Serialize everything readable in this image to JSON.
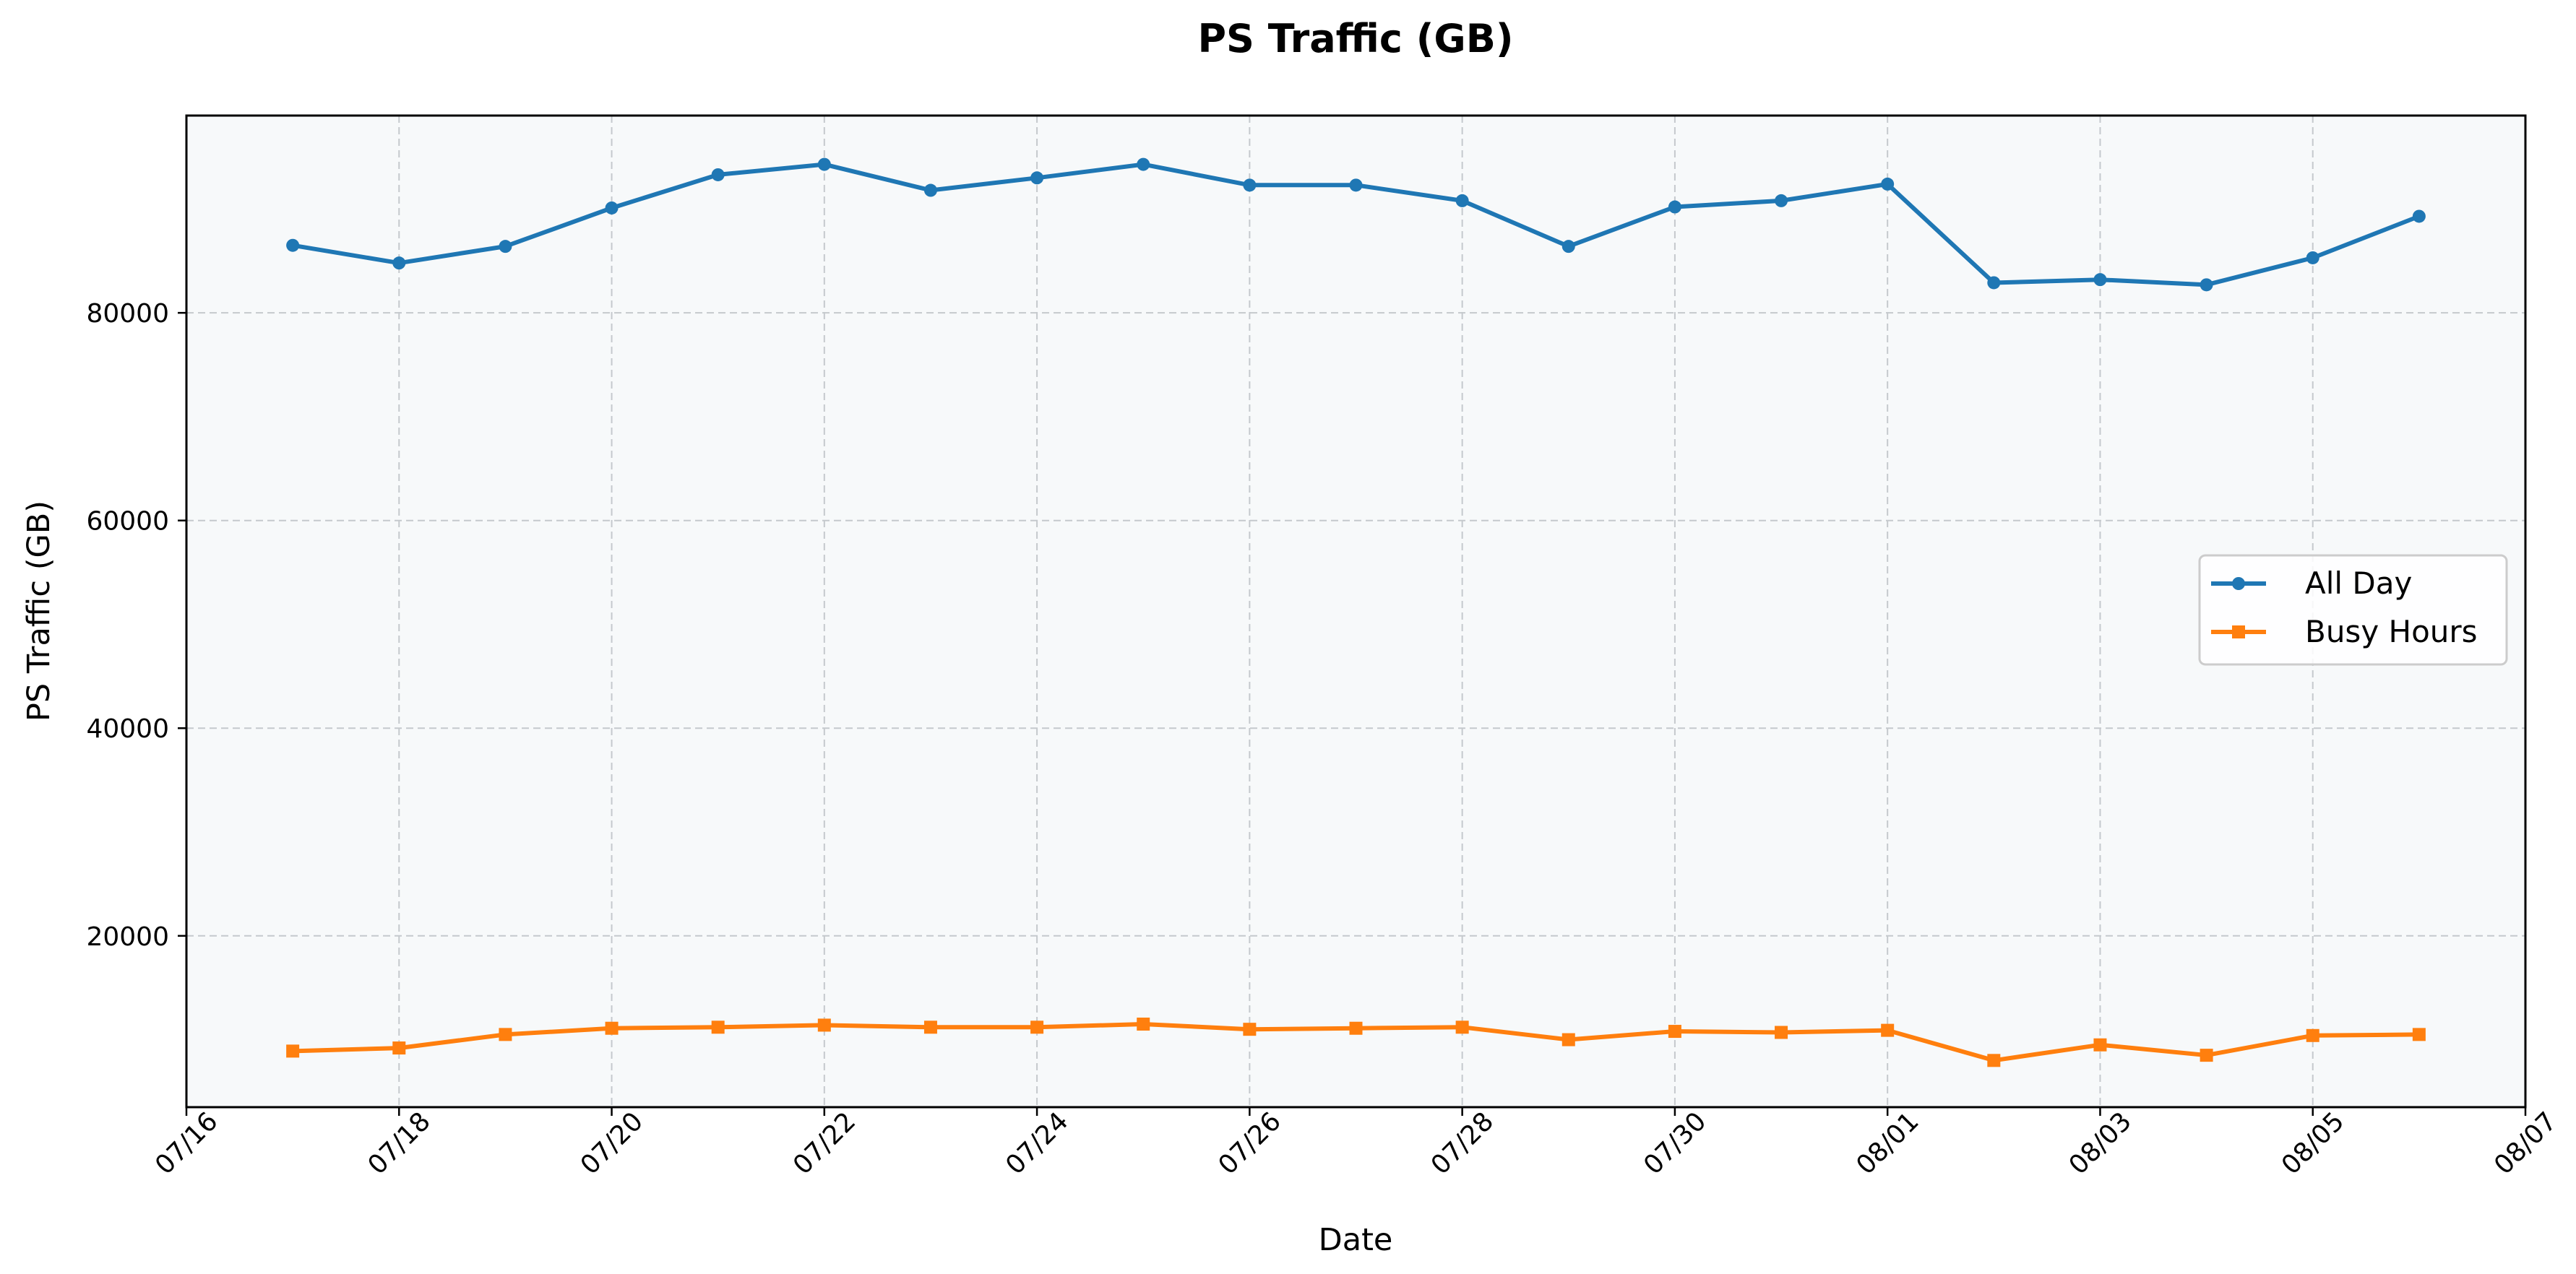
{
  "chart_data": {
    "type": "line",
    "title": "PS Traffic (GB)",
    "xlabel": "Date",
    "ylabel": "PS Traffic (GB)",
    "x_ticks": [
      "07/16",
      "07/18",
      "07/20",
      "07/22",
      "07/24",
      "07/26",
      "07/28",
      "07/30",
      "08/01",
      "08/03",
      "08/05",
      "08/07"
    ],
    "y_ticks": [
      20000,
      40000,
      60000,
      80000
    ],
    "xlim": [
      "07/16",
      "08/07"
    ],
    "ylim": [
      3500,
      99000
    ],
    "x": [
      "07/17",
      "07/18",
      "07/19",
      "07/20",
      "07/21",
      "07/22",
      "07/23",
      "07/24",
      "07/25",
      "07/26",
      "07/27",
      "07/28",
      "07/29",
      "07/30",
      "07/31",
      "08/01",
      "08/02",
      "08/03",
      "08/04",
      "08/05",
      "08/06"
    ],
    "series": [
      {
        "name": "All Day",
        "color": "#1f77b4",
        "marker": "circle",
        "values": [
          86500,
          84800,
          86400,
          90100,
          93300,
          94300,
          91800,
          93000,
          94300,
          92300,
          92300,
          90800,
          86400,
          90200,
          90800,
          92400,
          82900,
          83200,
          82700,
          85300,
          89300
        ]
      },
      {
        "name": "Busy Hours",
        "color": "#ff7f0e",
        "marker": "square",
        "values": [
          8900,
          9200,
          10500,
          11100,
          11200,
          11400,
          11200,
          11200,
          11500,
          11000,
          11100,
          11200,
          10000,
          10800,
          10700,
          10900,
          8000,
          9500,
          8500,
          10400,
          10500
        ]
      }
    ],
    "grid": true,
    "legend_position": "center-right",
    "plot_background": "#f7f9fa",
    "grid_color": "#c5c9cd"
  }
}
